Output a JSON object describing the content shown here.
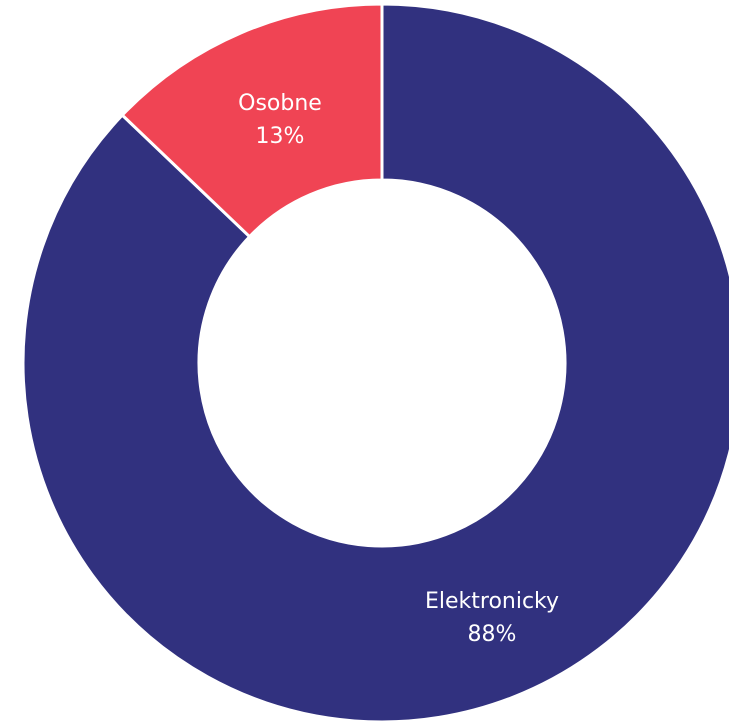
{
  "chart_data": {
    "type": "pie",
    "subtype": "donut",
    "title": "",
    "slices": [
      {
        "name": "Elektronicky",
        "value": 88,
        "label": "88%",
        "color": "#31317f"
      },
      {
        "name": "Osobne",
        "value": 13,
        "label": "13%",
        "color": "#f04454"
      }
    ],
    "legend": "none",
    "start_angle": "12 o'clock",
    "direction": "clockwise"
  }
}
